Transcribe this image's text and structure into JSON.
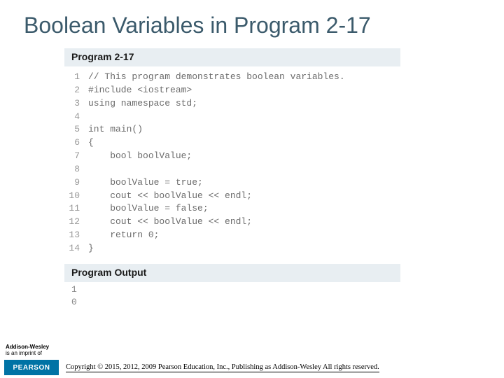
{
  "title": "Boolean Variables in Program 2-17",
  "program": {
    "header": "Program 2-17",
    "lines": [
      {
        "n": "1",
        "c": "// This program demonstrates boolean variables."
      },
      {
        "n": "2",
        "c": "#include <iostream>"
      },
      {
        "n": "3",
        "c": "using namespace std;"
      },
      {
        "n": "4",
        "c": ""
      },
      {
        "n": "5",
        "c": "int main()"
      },
      {
        "n": "6",
        "c": "{"
      },
      {
        "n": "7",
        "c": "    bool boolValue;"
      },
      {
        "n": "8",
        "c": ""
      },
      {
        "n": "9",
        "c": "    boolValue = true;"
      },
      {
        "n": "10",
        "c": "    cout << boolValue << endl;"
      },
      {
        "n": "11",
        "c": "    boolValue = false;"
      },
      {
        "n": "12",
        "c": "    cout << boolValue << endl;"
      },
      {
        "n": "13",
        "c": "    return 0;"
      },
      {
        "n": "14",
        "c": "}"
      }
    ]
  },
  "output": {
    "header": "Program Output",
    "lines": [
      "1",
      "0"
    ]
  },
  "imprint": {
    "brand": "Addison-Wesley",
    "line2": "is an imprint of"
  },
  "pearson": "PEARSON",
  "copyright": "Copyright © 2015, 2012, 2009 Pearson Education, Inc., Publishing as Addison-Wesley All rights reserved."
}
